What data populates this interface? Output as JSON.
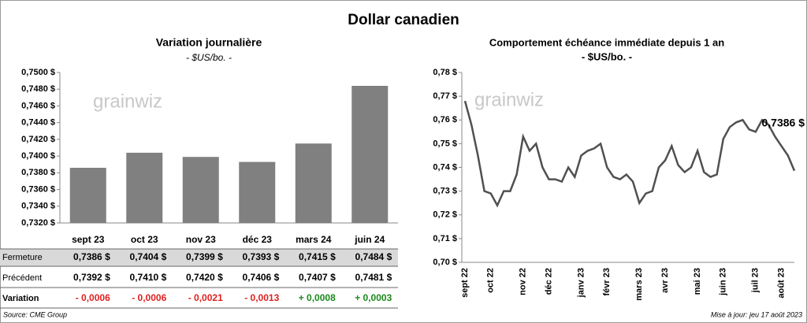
{
  "title": "Dollar canadien",
  "watermark": "grainwiz",
  "chart_data": [
    {
      "type": "bar",
      "title": "Variation  journalière",
      "subtitle": "- $US/bo. -",
      "categories": [
        "sept 23",
        "oct 23",
        "nov 23",
        "déc 23",
        "mars 24",
        "juin 24"
      ],
      "values": [
        0.7386,
        0.7404,
        0.7399,
        0.7393,
        0.7415,
        0.7484
      ],
      "color": "#808080",
      "ylim": [
        0.732,
        0.75
      ],
      "yticks": [
        {
          "value": 0.732,
          "label": "0,7320 $"
        },
        {
          "value": 0.734,
          "label": "0,7340 $"
        },
        {
          "value": 0.736,
          "label": "0,7360 $"
        },
        {
          "value": 0.738,
          "label": "0,7380 $"
        },
        {
          "value": 0.74,
          "label": "0,7400 $"
        },
        {
          "value": 0.742,
          "label": "0,7420 $"
        },
        {
          "value": 0.744,
          "label": "0,7440 $"
        },
        {
          "value": 0.746,
          "label": "0,7460 $"
        },
        {
          "value": 0.748,
          "label": "0,7480 $"
        },
        {
          "value": 0.75,
          "label": "0,7500 $"
        }
      ]
    },
    {
      "type": "line",
      "title": "Comportement échéance immédiate depuis 1 an",
      "subtitle": "- $US/bo. -",
      "categories": [
        "sept 22",
        null,
        null,
        null,
        "oct 22",
        null,
        null,
        null,
        null,
        "nov 22",
        null,
        null,
        null,
        "déc 22",
        null,
        null,
        null,
        null,
        "janv 23",
        null,
        null,
        null,
        "févr 23",
        null,
        null,
        null,
        null,
        "mars 23",
        null,
        null,
        null,
        "avr 23",
        null,
        null,
        null,
        null,
        "mai 23",
        null,
        null,
        null,
        "juin 23",
        null,
        null,
        null,
        null,
        "juil 23",
        null,
        null,
        null,
        "août 23",
        null,
        null
      ],
      "values": [
        0.768,
        0.758,
        0.745,
        0.73,
        0.729,
        0.724,
        0.73,
        0.73,
        0.737,
        0.753,
        0.747,
        0.75,
        0.74,
        0.735,
        0.735,
        0.734,
        0.74,
        0.736,
        0.745,
        0.747,
        0.748,
        0.75,
        0.74,
        0.736,
        0.735,
        0.737,
        0.734,
        0.725,
        0.729,
        0.73,
        0.74,
        0.743,
        0.749,
        0.741,
        0.738,
        0.74,
        0.747,
        0.738,
        0.736,
        0.737,
        0.752,
        0.757,
        0.759,
        0.76,
        0.756,
        0.755,
        0.76,
        0.758,
        0.753,
        0.749,
        0.745,
        0.7386
      ],
      "value_labels": [
        null,
        null,
        null,
        null,
        null,
        null,
        null,
        null,
        null,
        null,
        null,
        null,
        null,
        null,
        null,
        null,
        null,
        null,
        null,
        null,
        null,
        null,
        null,
        null,
        null,
        null,
        null,
        null,
        null,
        null,
        null,
        null,
        null,
        null,
        null,
        null,
        null,
        null,
        null,
        null,
        null,
        null,
        null,
        null,
        null,
        null,
        null,
        null,
        null,
        null,
        null,
        "0,7386 $"
      ],
      "color": "#505050",
      "ylim": [
        0.7,
        0.78
      ],
      "yticks": [
        {
          "value": 0.7,
          "label": "0,70 $"
        },
        {
          "value": 0.71,
          "label": "0,71 $"
        },
        {
          "value": 0.72,
          "label": "0,72 $"
        },
        {
          "value": 0.73,
          "label": "0,73 $"
        },
        {
          "value": 0.74,
          "label": "0,74 $"
        },
        {
          "value": 0.75,
          "label": "0,75 $"
        },
        {
          "value": 0.76,
          "label": "0,76 $"
        },
        {
          "value": 0.77,
          "label": "0,77 $"
        },
        {
          "value": 0.78,
          "label": "0,78 $"
        }
      ]
    }
  ],
  "table": {
    "rows": [
      {
        "label": "Fermeture",
        "cells": [
          "0,7386 $",
          "0,7404 $",
          "0,7399 $",
          "0,7393 $",
          "0,7415 $",
          "0,7484 $"
        ]
      },
      {
        "label": "Précédent",
        "cells": [
          "0,7392 $",
          "0,7410 $",
          "0,7420 $",
          "0,7406 $",
          "0,7407 $",
          "0,7481 $"
        ]
      },
      {
        "label": "Variation",
        "cells": [
          "- 0,0006",
          "- 0,0006",
          "- 0,0021",
          "- 0,0013",
          "+ 0,0008",
          "+ 0,0003"
        ],
        "colors": [
          "#e02020",
          "#e02020",
          "#e02020",
          "#e02020",
          "#1a8a1a",
          "#1a8a1a"
        ]
      }
    ]
  },
  "source": "Source: CME Group",
  "updated": "Mise à jour: jeu 17 août 2023"
}
